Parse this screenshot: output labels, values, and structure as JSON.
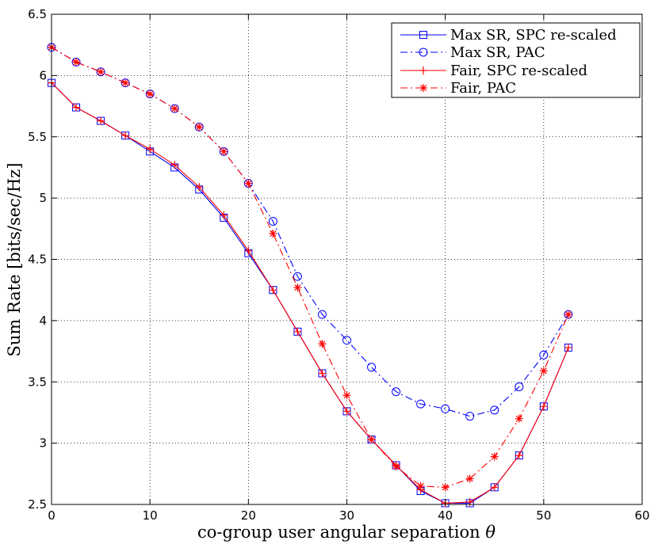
{
  "chart_data": {
    "type": "line",
    "title": "",
    "xlabel": "co-group user angular separation",
    "xlabel_symbol": "θ",
    "ylabel": "Sum Rate [bits/sec/Hz]",
    "xlim": [
      0,
      60
    ],
    "ylim": [
      2.5,
      6.5
    ],
    "xticks": [
      0,
      10,
      20,
      30,
      40,
      50,
      60
    ],
    "yticks": [
      2.5,
      3,
      3.5,
      4,
      4.5,
      5,
      5.5,
      6,
      6.5
    ],
    "xtick_labels": [
      "0",
      "10",
      "20",
      "30",
      "40",
      "50",
      "60"
    ],
    "ytick_labels": [
      "2.5",
      "3",
      "3.5",
      "4",
      "4.5",
      "5",
      "5.5",
      "6",
      "6.5"
    ],
    "grid": true,
    "legend_position": "top-right",
    "x": [
      0,
      2.5,
      5,
      7.5,
      10,
      12.5,
      15,
      17.5,
      20,
      22.5,
      25,
      27.5,
      30,
      32.5,
      35,
      37.5,
      40,
      42.5,
      45,
      47.5,
      50,
      52.5
    ],
    "series": [
      {
        "name": "Max SR, SPC re-scaled",
        "color": "#0000ff",
        "line_style": "solid",
        "marker": "square",
        "values": [
          5.94,
          5.74,
          5.63,
          5.51,
          5.38,
          5.25,
          5.07,
          4.84,
          4.55,
          4.25,
          3.91,
          3.57,
          3.26,
          3.03,
          2.82,
          2.61,
          2.51,
          2.51,
          2.64,
          2.9,
          3.3,
          3.78
        ]
      },
      {
        "name": "Max SR, PAC",
        "color": "#0000ff",
        "line_style": "dashdot",
        "marker": "circle",
        "values": [
          6.23,
          6.11,
          6.03,
          5.94,
          5.85,
          5.73,
          5.58,
          5.38,
          5.12,
          4.81,
          4.36,
          4.05,
          3.84,
          3.62,
          3.42,
          3.32,
          3.28,
          3.22,
          3.27,
          3.46,
          3.72,
          4.05
        ]
      },
      {
        "name": "Fair, SPC re-scaled",
        "color": "#ff0000",
        "line_style": "solid",
        "marker": "plus",
        "values": [
          5.94,
          5.74,
          5.63,
          5.51,
          5.4,
          5.27,
          5.09,
          4.86,
          4.57,
          4.25,
          3.91,
          3.57,
          3.26,
          3.03,
          2.82,
          2.62,
          2.51,
          2.52,
          2.64,
          2.9,
          3.3,
          3.78
        ]
      },
      {
        "name": "Fair, PAC",
        "color": "#ff0000",
        "line_style": "dashdot",
        "marker": "asterisk",
        "values": [
          6.23,
          6.11,
          6.03,
          5.94,
          5.85,
          5.73,
          5.58,
          5.38,
          5.12,
          4.71,
          4.27,
          3.81,
          3.39,
          3.03,
          2.81,
          2.65,
          2.64,
          2.71,
          2.89,
          3.2,
          3.59,
          4.05
        ]
      }
    ]
  }
}
